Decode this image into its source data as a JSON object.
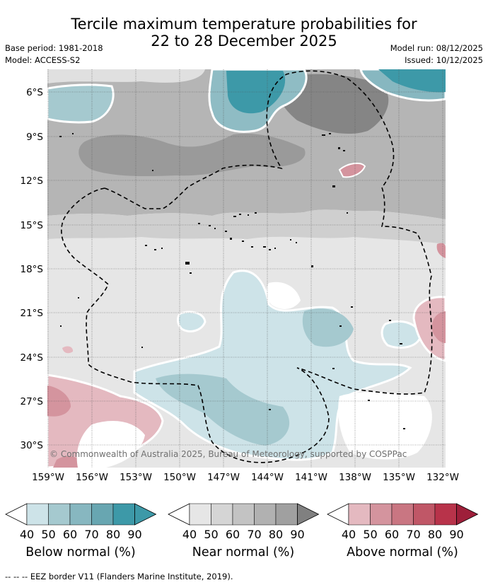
{
  "header": {
    "title_line1": "Tercile maximum temperature probabilities for",
    "title_line2": "22 to 28 December 2025",
    "base_period": "Base period: 1981-2018",
    "model": "Model: ACCESS-S2",
    "model_run": "Model run: 08/12/2025",
    "issued": "Issued: 10/12/2025"
  },
  "map": {
    "lat_labels": [
      "6°S",
      "9°S",
      "12°S",
      "15°S",
      "18°S",
      "21°S",
      "24°S",
      "27°S",
      "30°S"
    ],
    "lon_labels": [
      "159°W",
      "156°W",
      "153°W",
      "150°W",
      "147°W",
      "144°W",
      "141°W",
      "138°W",
      "135°W",
      "132°W"
    ],
    "copyright": "© Commonwealth of Australia 2025, Bureau of Meteorology, supported by COSPPac"
  },
  "legend": {
    "ticks": [
      "40",
      "50",
      "60",
      "70",
      "80",
      "90"
    ],
    "below": {
      "label": "Below normal (%)",
      "colors": [
        "#cde3e8",
        "#a5c9cf",
        "#87b7c0",
        "#68a6b1",
        "#3d99a8"
      ]
    },
    "near": {
      "label": "Near normal (%)",
      "colors": [
        "#e6e6e6",
        "#d5d5d5",
        "#c3c3c3",
        "#b1b1b1",
        "#a0a0a0"
      ],
      "end": "#808080"
    },
    "above": {
      "label": "Above normal (%)",
      "colors": [
        "#e4b9c0",
        "#d4949e",
        "#c97682",
        "#c05767",
        "#b8334a"
      ],
      "end": "#9e1f3a"
    }
  },
  "footer": {
    "eez_note": "--  --  -- EEZ border V11 (Flanders Marine Institute, 2019)."
  }
}
